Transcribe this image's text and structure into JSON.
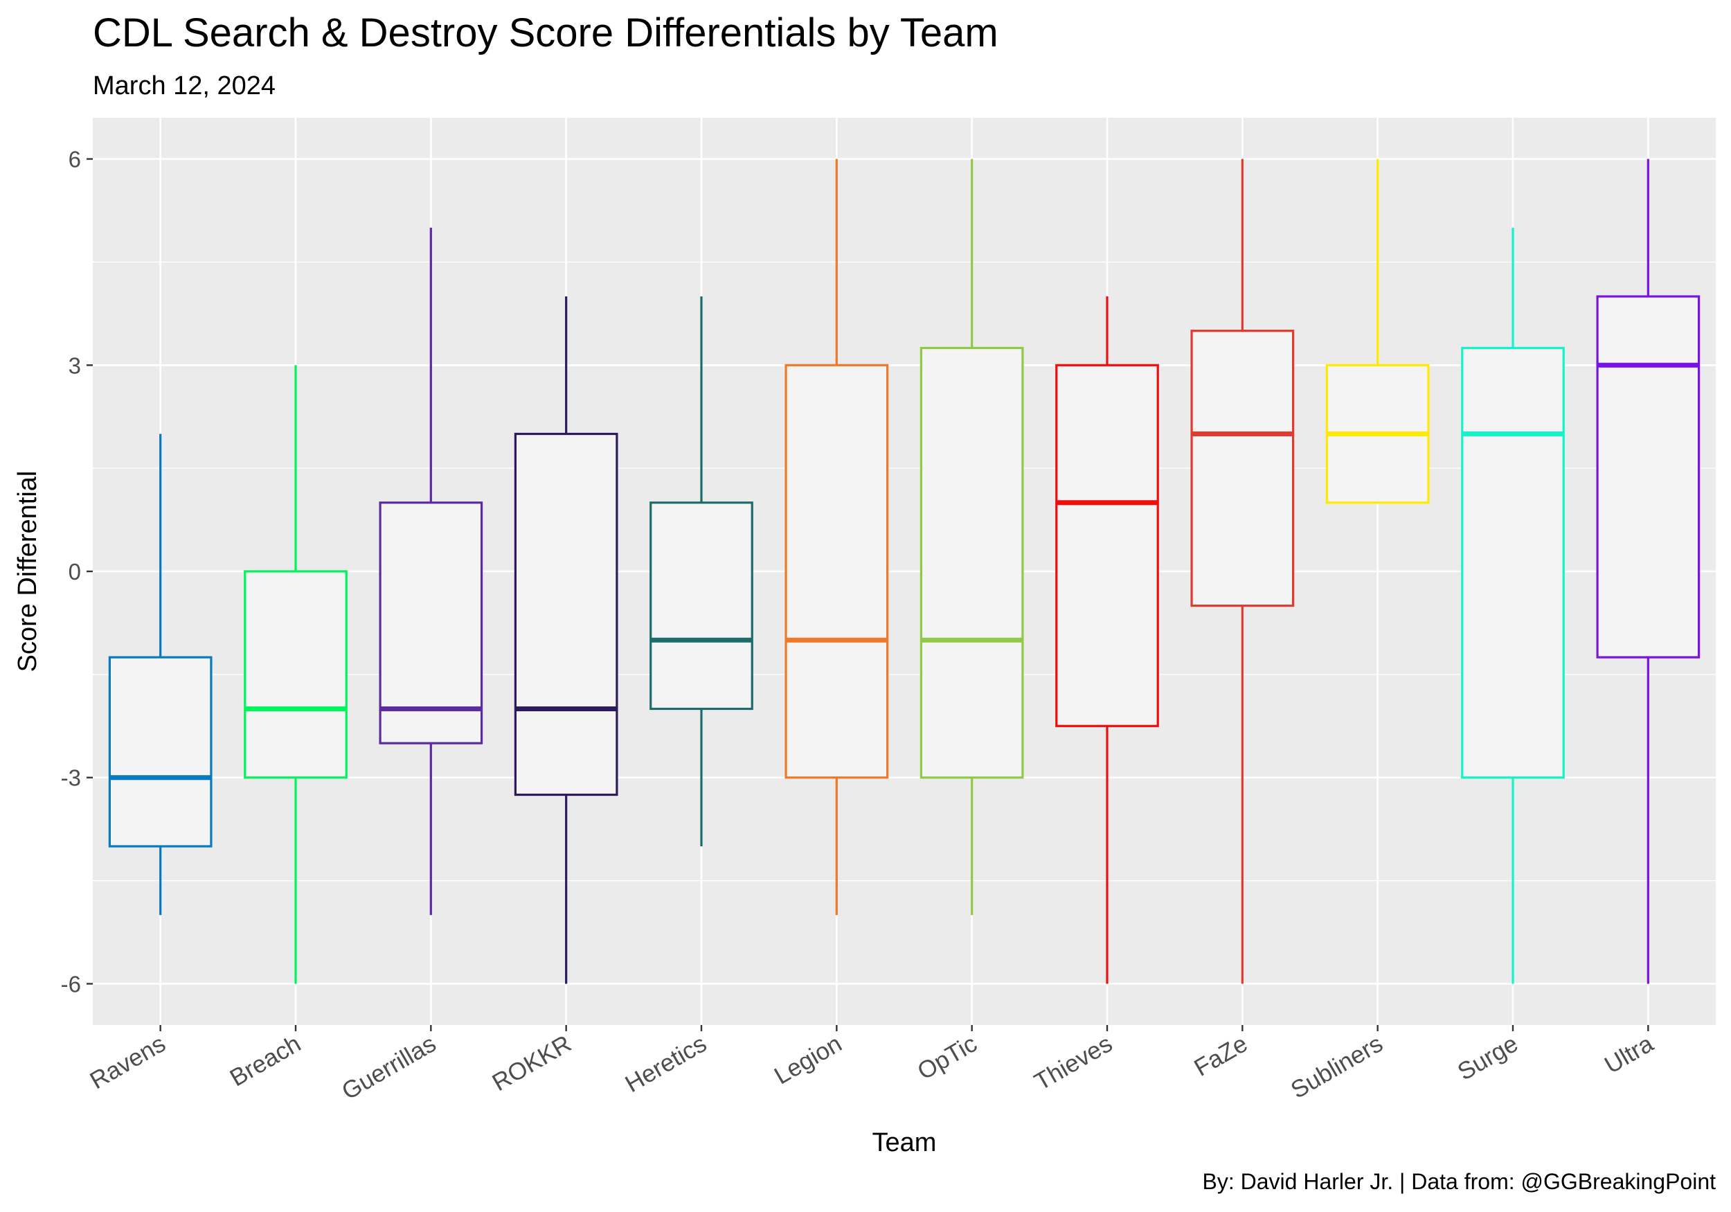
{
  "chart_data": {
    "type": "boxplot",
    "title": "CDL Search & Destroy Score Differentials by Team",
    "subtitle": "March 12, 2024",
    "xlabel": "Team",
    "ylabel": "Score Differential",
    "caption": "By: David Harler Jr. | Data from: @GGBreakingPoint",
    "ylim": [
      -6.6,
      6.6
    ],
    "y_ticks": [
      -6,
      -3,
      0,
      3,
      6
    ],
    "y_tick_labels": [
      "-6",
      "-3",
      "0",
      "3",
      "6"
    ],
    "grid": true,
    "legend": "none",
    "categories": [
      "Ravens",
      "Breach",
      "Guerrillas",
      "ROKKR",
      "Heretics",
      "Legion",
      "OpTic",
      "Thieves",
      "FaZe",
      "Subliners",
      "Surge",
      "Ultra"
    ],
    "boxes": [
      {
        "team": "Ravens",
        "min": -5,
        "q1": -4,
        "median": -3,
        "q3": -1.25,
        "max": 2,
        "color": "#0A7ABF"
      },
      {
        "team": "Breach",
        "min": -6,
        "q1": -3,
        "median": -2,
        "q3": 0,
        "max": 3,
        "color": "#00F55A"
      },
      {
        "team": "Guerrillas",
        "min": -5,
        "q1": -2.5,
        "median": -2,
        "q3": 1,
        "max": 5,
        "color": "#5A2CA0"
      },
      {
        "team": "ROKKR",
        "min": -6,
        "q1": -3.25,
        "median": -2,
        "q3": 2,
        "max": 4,
        "color": "#2E1B5E"
      },
      {
        "team": "Heretics",
        "min": -4,
        "q1": -2,
        "median": -1,
        "q3": 1,
        "max": 4,
        "color": "#1E6B6B"
      },
      {
        "team": "Legion",
        "min": -5,
        "q1": -3,
        "median": -1,
        "q3": 3,
        "max": 6,
        "color": "#F07828"
      },
      {
        "team": "OpTic",
        "min": -5,
        "q1": -3,
        "median": -1,
        "q3": 3.25,
        "max": 6,
        "color": "#92C848"
      },
      {
        "team": "Thieves",
        "min": -6,
        "q1": -2.25,
        "median": 1,
        "q3": 3,
        "max": 4,
        "color": "#F20C0C"
      },
      {
        "team": "FaZe",
        "min": -6,
        "q1": -0.5,
        "median": 2,
        "q3": 3.5,
        "max": 6,
        "color": "#E23A2E"
      },
      {
        "team": "Subliners",
        "min": 1,
        "q1": 1,
        "median": 2,
        "q3": 3,
        "max": 6,
        "color": "#FFEA00"
      },
      {
        "team": "Surge",
        "min": -6,
        "q1": -3,
        "median": 2,
        "q3": 3.25,
        "max": 5,
        "color": "#12F5C8"
      },
      {
        "team": "Ultra",
        "min": -6,
        "q1": -1.25,
        "median": 3,
        "q3": 4,
        "max": 6,
        "color": "#7A12E6"
      }
    ],
    "colors": {
      "panel_background": "#EBEBEB",
      "grid_major": "#FFFFFF",
      "box_fill": "#F4F4F4",
      "tick_text": "#4D4D4D"
    }
  }
}
